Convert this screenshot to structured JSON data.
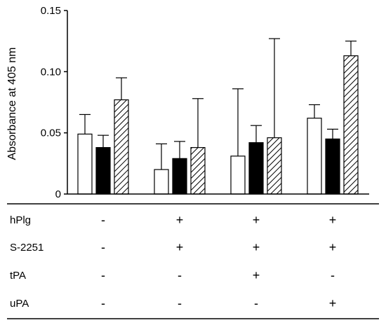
{
  "chart_data": {
    "type": "bar",
    "ylabel": "Absorbance at 405 nm",
    "ylim": [
      0,
      0.15
    ],
    "yticks": [
      "0",
      "0.05",
      "0.10",
      "0.15"
    ],
    "ytick_values": [
      0,
      0.05,
      0.1,
      0.15
    ],
    "grid": false,
    "group_count": 4,
    "series": [
      {
        "fill": "white",
        "values": [
          0.049,
          0.02,
          0.031,
          0.062
        ],
        "errors": [
          0.016,
          0.021,
          0.055,
          0.011
        ]
      },
      {
        "fill": "black",
        "values": [
          0.038,
          0.029,
          0.042,
          0.045
        ],
        "errors": [
          0.01,
          0.014,
          0.014,
          0.008
        ]
      },
      {
        "fill": "hatched",
        "values": [
          0.077,
          0.038,
          0.046,
          0.113
        ],
        "errors": [
          0.018,
          0.04,
          0.081,
          0.012
        ]
      }
    ],
    "conditions": [
      {
        "label": "hPlg",
        "signs": [
          "-",
          "+",
          "+",
          "+"
        ]
      },
      {
        "label": "S-2251",
        "signs": [
          "-",
          "+",
          "+",
          "+"
        ]
      },
      {
        "label": "tPA",
        "signs": [
          "-",
          "-",
          "+",
          "-"
        ]
      },
      {
        "label": "uPA",
        "signs": [
          "-",
          "-",
          "-",
          "+"
        ]
      }
    ]
  }
}
